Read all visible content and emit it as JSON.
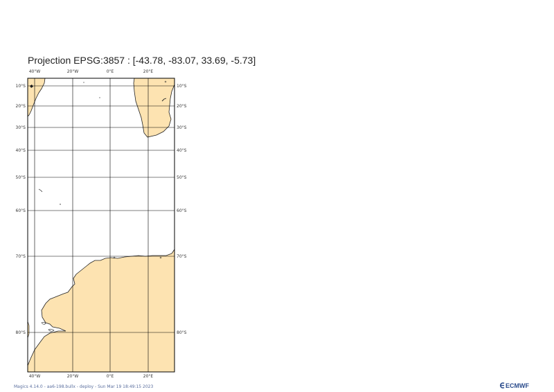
{
  "title": "Projection EPSG:3857 : [-43.78, -83.07, 33.69, -5.73]",
  "map": {
    "land_color": "#fde3b1",
    "ocean_color": "#ffffff",
    "coast_color": "#222222",
    "grid_color": "#000000",
    "lon_labels": [
      "40°W",
      "20°W",
      "0°E",
      "20°E"
    ],
    "lat_labels": [
      "10°S",
      "20°S",
      "30°S",
      "40°S",
      "50°S",
      "60°S",
      "70°S",
      "80°S"
    ]
  },
  "footer": {
    "text": "Magics 4.14.0 - aa6-198.bullx - deploy - Sun Mar 19 18:49:15 2023",
    "logo": "ECMWF",
    "logo_icon": "ecmwf-logo-icon"
  }
}
